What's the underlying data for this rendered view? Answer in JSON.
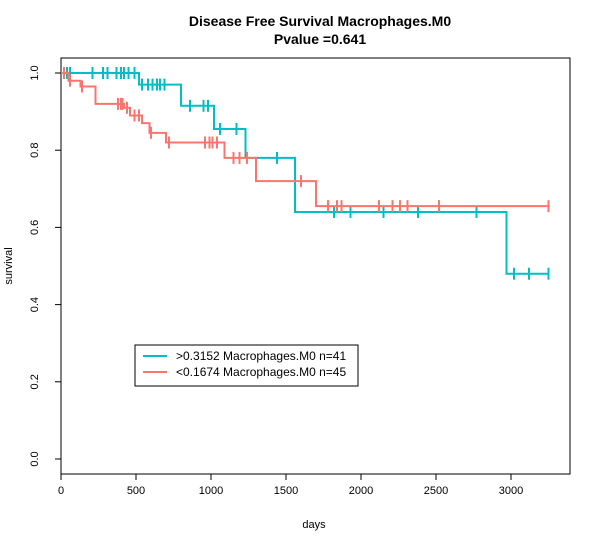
{
  "chart_data": {
    "type": "line",
    "title": "Disease Free Survival Macrophages.M0",
    "subtitle": "Pvalue =0.641",
    "xlabel": "days",
    "ylabel": "survival",
    "xlim": [
      0,
      3400
    ],
    "ylim": [
      0,
      1.0
    ],
    "x_ticks": [
      "0",
      "500",
      "1000",
      "1500",
      "2000",
      "2500",
      "3000"
    ],
    "y_ticks": [
      "0.0",
      "0.2",
      "0.4",
      "0.6",
      "0.8",
      "1.0"
    ],
    "grid": false,
    "legend_position": "bottom-left",
    "series": [
      {
        "name": ">0.3152 Macrophages.M0 n=41",
        "color": "#00BFC4",
        "steps": [
          [
            0,
            1.0
          ],
          [
            520,
            0.97
          ],
          [
            800,
            0.915
          ],
          [
            1020,
            0.855
          ],
          [
            1230,
            0.78
          ],
          [
            1560,
            0.64
          ],
          [
            2970,
            0.48
          ],
          [
            3250,
            0.48
          ]
        ],
        "censored": [
          [
            20,
            1.0
          ],
          [
            40,
            1.0
          ],
          [
            60,
            1.0
          ],
          [
            210,
            1.0
          ],
          [
            280,
            1.0
          ],
          [
            310,
            1.0
          ],
          [
            370,
            1.0
          ],
          [
            400,
            1.0
          ],
          [
            420,
            1.0
          ],
          [
            450,
            1.0
          ],
          [
            490,
            1.0
          ],
          [
            540,
            0.97
          ],
          [
            580,
            0.97
          ],
          [
            610,
            0.97
          ],
          [
            640,
            0.97
          ],
          [
            660,
            0.97
          ],
          [
            690,
            0.97
          ],
          [
            860,
            0.915
          ],
          [
            950,
            0.915
          ],
          [
            980,
            0.915
          ],
          [
            1060,
            0.855
          ],
          [
            1170,
            0.855
          ],
          [
            1440,
            0.78
          ],
          [
            1820,
            0.64
          ],
          [
            1930,
            0.64
          ],
          [
            2150,
            0.64
          ],
          [
            2380,
            0.64
          ],
          [
            2770,
            0.64
          ],
          [
            3020,
            0.48
          ],
          [
            3120,
            0.48
          ],
          [
            3250,
            0.48
          ]
        ]
      },
      {
        "name": "<0.1674 Macrophages.M0 n=45",
        "color": "#F8766D",
        "steps": [
          [
            0,
            1.0
          ],
          [
            50,
            0.98
          ],
          [
            130,
            0.965
          ],
          [
            230,
            0.92
          ],
          [
            420,
            0.91
          ],
          [
            460,
            0.89
          ],
          [
            540,
            0.87
          ],
          [
            590,
            0.845
          ],
          [
            700,
            0.82
          ],
          [
            1090,
            0.78
          ],
          [
            1300,
            0.72
          ],
          [
            1700,
            0.655
          ],
          [
            3250,
            0.655
          ]
        ],
        "censored": [
          [
            20,
            1.0
          ],
          [
            60,
            0.98
          ],
          [
            140,
            0.965
          ],
          [
            380,
            0.92
          ],
          [
            400,
            0.92
          ],
          [
            410,
            0.92
          ],
          [
            440,
            0.91
          ],
          [
            490,
            0.89
          ],
          [
            520,
            0.89
          ],
          [
            600,
            0.845
          ],
          [
            720,
            0.82
          ],
          [
            960,
            0.82
          ],
          [
            990,
            0.82
          ],
          [
            1010,
            0.82
          ],
          [
            1040,
            0.82
          ],
          [
            1150,
            0.78
          ],
          [
            1190,
            0.78
          ],
          [
            1240,
            0.78
          ],
          [
            1600,
            0.72
          ],
          [
            1780,
            0.655
          ],
          [
            1840,
            0.655
          ],
          [
            1870,
            0.655
          ],
          [
            2120,
            0.655
          ],
          [
            2210,
            0.655
          ],
          [
            2260,
            0.655
          ],
          [
            2310,
            0.655
          ],
          [
            2520,
            0.655
          ],
          [
            3250,
            0.655
          ]
        ]
      }
    ]
  }
}
